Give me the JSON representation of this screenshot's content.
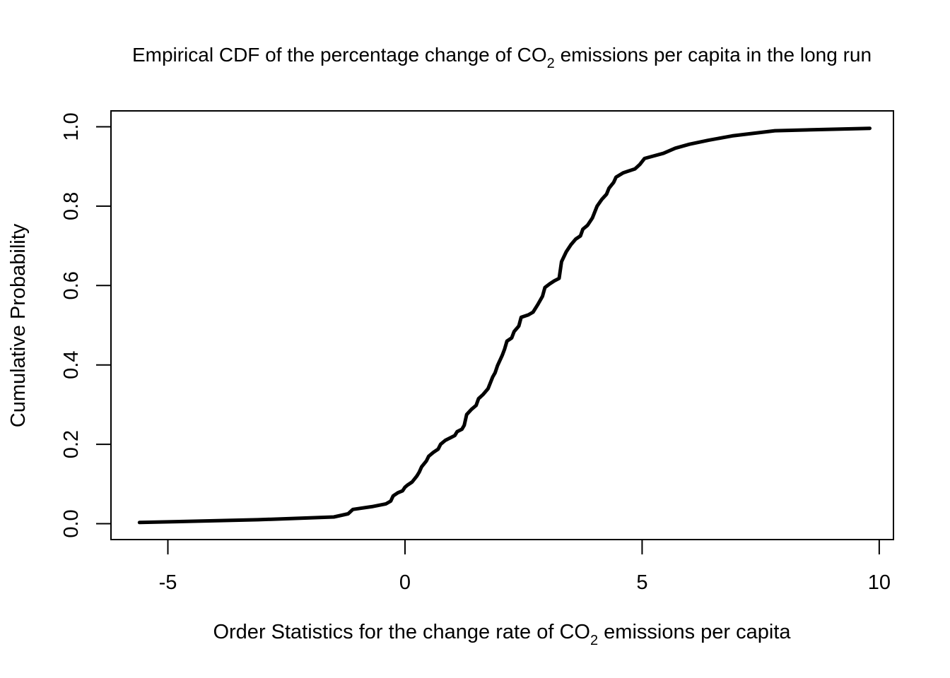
{
  "chart_data": {
    "type": "line",
    "title": {
      "prefix": "Empirical CDF of the percentage change of CO",
      "subscript": "2",
      "suffix": " emissions per capita in the long run"
    },
    "xlabel": {
      "prefix": "Order Statistics for the change rate of CO",
      "subscript": "2",
      "suffix": " emissions per capita"
    },
    "ylabel": "Cumulative Probability",
    "xlim": [
      -6.2,
      10.3
    ],
    "ylim": [
      -0.04,
      1.04
    ],
    "x_ticks": [
      -5,
      0,
      5,
      10
    ],
    "x_tick_labels": [
      "-5",
      "0",
      "5",
      "10"
    ],
    "y_ticks": [
      0.0,
      0.2,
      0.4,
      0.6,
      0.8,
      1.0
    ],
    "y_tick_labels": [
      "0.0",
      "0.2",
      "0.4",
      "0.6",
      "0.8",
      "1.0"
    ],
    "grid": false,
    "series": [
      {
        "name": "Empirical CDF",
        "color": "#000000",
        "points": [
          [
            -5.6,
            0.003
          ],
          [
            -3.1,
            0.01
          ],
          [
            -1.5,
            0.017
          ],
          [
            -1.2,
            0.025
          ],
          [
            -1.1,
            0.036
          ],
          [
            -0.7,
            0.043
          ],
          [
            -0.4,
            0.05
          ],
          [
            -0.3,
            0.057
          ],
          [
            -0.25,
            0.07
          ],
          [
            -0.15,
            0.078
          ],
          [
            -0.05,
            0.083
          ],
          [
            0.0,
            0.092
          ],
          [
            0.05,
            0.097
          ],
          [
            0.15,
            0.105
          ],
          [
            0.25,
            0.12
          ],
          [
            0.3,
            0.13
          ],
          [
            0.35,
            0.143
          ],
          [
            0.45,
            0.158
          ],
          [
            0.5,
            0.17
          ],
          [
            0.6,
            0.18
          ],
          [
            0.7,
            0.188
          ],
          [
            0.75,
            0.2
          ],
          [
            0.85,
            0.21
          ],
          [
            0.95,
            0.216
          ],
          [
            1.05,
            0.222
          ],
          [
            1.1,
            0.232
          ],
          [
            1.2,
            0.238
          ],
          [
            1.25,
            0.248
          ],
          [
            1.3,
            0.275
          ],
          [
            1.4,
            0.288
          ],
          [
            1.5,
            0.298
          ],
          [
            1.55,
            0.315
          ],
          [
            1.65,
            0.326
          ],
          [
            1.75,
            0.34
          ],
          [
            1.85,
            0.37
          ],
          [
            1.9,
            0.38
          ],
          [
            1.95,
            0.398
          ],
          [
            2.05,
            0.424
          ],
          [
            2.1,
            0.44
          ],
          [
            2.15,
            0.46
          ],
          [
            2.25,
            0.468
          ],
          [
            2.3,
            0.484
          ],
          [
            2.4,
            0.498
          ],
          [
            2.45,
            0.52
          ],
          [
            2.6,
            0.526
          ],
          [
            2.7,
            0.533
          ],
          [
            2.8,
            0.552
          ],
          [
            2.9,
            0.573
          ],
          [
            2.95,
            0.595
          ],
          [
            3.05,
            0.604
          ],
          [
            3.15,
            0.612
          ],
          [
            3.25,
            0.618
          ],
          [
            3.3,
            0.66
          ],
          [
            3.4,
            0.685
          ],
          [
            3.5,
            0.703
          ],
          [
            3.6,
            0.717
          ],
          [
            3.7,
            0.725
          ],
          [
            3.75,
            0.742
          ],
          [
            3.85,
            0.752
          ],
          [
            3.95,
            0.77
          ],
          [
            4.05,
            0.8
          ],
          [
            4.15,
            0.817
          ],
          [
            4.25,
            0.83
          ],
          [
            4.3,
            0.845
          ],
          [
            4.4,
            0.86
          ],
          [
            4.45,
            0.873
          ],
          [
            4.6,
            0.884
          ],
          [
            4.85,
            0.894
          ],
          [
            4.95,
            0.905
          ],
          [
            5.05,
            0.92
          ],
          [
            5.2,
            0.925
          ],
          [
            5.45,
            0.933
          ],
          [
            5.7,
            0.946
          ],
          [
            6.0,
            0.956
          ],
          [
            6.4,
            0.966
          ],
          [
            6.9,
            0.977
          ],
          [
            7.8,
            0.99
          ],
          [
            8.8,
            0.993
          ],
          [
            9.8,
            0.996
          ]
        ]
      }
    ]
  }
}
